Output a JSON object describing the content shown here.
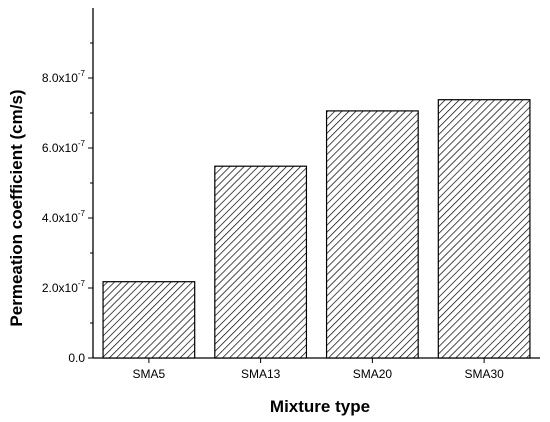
{
  "chart_data": {
    "type": "bar",
    "categories": [
      "SMA5",
      "SMA13",
      "SMA20",
      "SMA30"
    ],
    "values": [
      2.18e-07,
      5.48e-07,
      7.06e-07,
      7.38e-07
    ],
    "xlabel": "Mixture type",
    "ylabel": "Permeation  coefficient (cm/s)",
    "ylim": [
      0,
      1e-06
    ],
    "yticks": [
      {
        "value": 0,
        "mantissa": "0.0",
        "exponent": ""
      },
      {
        "value": 2e-07,
        "mantissa": "2.0x10",
        "exponent": "-7"
      },
      {
        "value": 4e-07,
        "mantissa": "4.0x10",
        "exponent": "-7"
      },
      {
        "value": 6e-07,
        "mantissa": "6.0x10",
        "exponent": "-7"
      },
      {
        "value": 8e-07,
        "mantissa": "8.0x10",
        "exponent": "-7"
      }
    ],
    "bar_fill": "diagonal-hatch",
    "grid": false,
    "legend": "none",
    "colors": {
      "bar_stroke": "#000000",
      "hatch": "#000000",
      "background": "#ffffff"
    }
  }
}
